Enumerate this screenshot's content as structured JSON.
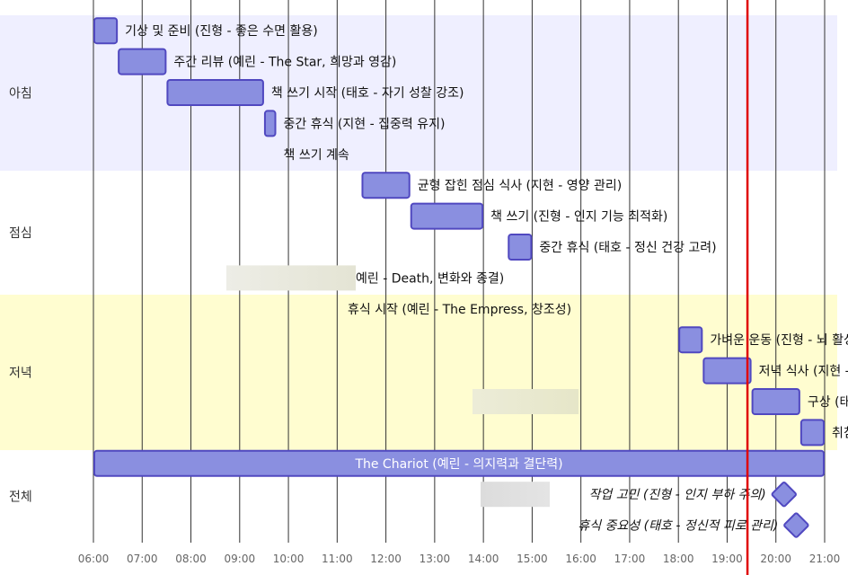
{
  "chart_data": {
    "type": "gantt",
    "x_range": [
      "06:00",
      "21:00"
    ],
    "x_ticks": [
      "06:00",
      "07:00",
      "08:00",
      "09:00",
      "10:00",
      "11:00",
      "12:00",
      "13:00",
      "14:00",
      "15:00",
      "16:00",
      "17:00",
      "18:00",
      "19:00",
      "20:00",
      "21:00"
    ],
    "today_marker": "19:25",
    "sections": [
      {
        "name": "아침",
        "color": "#efefff"
      },
      {
        "name": "점심",
        "color": "#ffffff"
      },
      {
        "name": "저녁",
        "color": "#fffdd0"
      },
      {
        "name": "전체",
        "color": "#ffffff"
      }
    ],
    "tasks": [
      {
        "label": "기상 및 준비 (진형 - 좋은 수면 활용)",
        "section": 0,
        "start": "06:00",
        "end": "06:30",
        "kind": "bar"
      },
      {
        "label": "주간 리뷰 (예린 - The Star, 희망과 영감)",
        "section": 0,
        "start": "06:30",
        "end": "07:30",
        "kind": "bar"
      },
      {
        "label": "책 쓰기 시작 (태호 - 자기 성찰 강조)",
        "section": 0,
        "start": "07:30",
        "end": "09:30",
        "kind": "bar"
      },
      {
        "label": "중간 휴식 (지현 - 집중력 유지)",
        "section": 0,
        "start": "09:30",
        "end": "09:45",
        "kind": "bar"
      },
      {
        "label": "책 쓰기 계속",
        "section": 0,
        "start": "09:45",
        "end": "09:45",
        "kind": "bar"
      },
      {
        "label": "균형 잡힌 점심 식사 (지현 - 영양 관리)",
        "section": 1,
        "start": "11:30",
        "end": "12:30",
        "kind": "bar"
      },
      {
        "label": "책 쓰기 (진형 - 인지 기능 최적화)",
        "section": 1,
        "start": "12:30",
        "end": "14:00",
        "kind": "bar"
      },
      {
        "label": "중간 휴식 (태호 - 정신 건강 고려)",
        "section": 1,
        "start": "14:30",
        "end": "15:00",
        "kind": "bar"
      },
      {
        "label": "예린 - Death, 변화와 종결)",
        "section": 1,
        "start": "08:45",
        "end": "11:25",
        "kind": "ghost"
      },
      {
        "label": "휴식 시작 (예린 - The Empress, 창조성)",
        "section": 2,
        "start": "",
        "end": "",
        "kind": "label"
      },
      {
        "label": "가벼운 운동 (진형 - 뇌 활성화)",
        "section": 2,
        "start": "18:00",
        "end": "18:30",
        "kind": "bar"
      },
      {
        "label": "저녁 식사 (지현 - 균형 잡힌 식단)",
        "section": 2,
        "start": "18:30",
        "end": "19:30",
        "kind": "bar"
      },
      {
        "label": "구상 (태호 - 창의성 발휘)",
        "section": 2,
        "start": "19:30",
        "end": "20:30",
        "kind": "bar"
      },
      {
        "label": "취침 준비 (지현 - 내일 준비)",
        "section": 2,
        "start": "20:30",
        "end": "21:00",
        "kind": "bar"
      },
      {
        "label": "The Chariot (예린 - 의지력과 결단력)",
        "section": 3,
        "start": "06:00",
        "end": "21:00",
        "kind": "bar-inside"
      },
      {
        "label": "작업 고민 (진형 - 인지 부하 주의)",
        "section": 3,
        "start": "20:10",
        "end": "20:10",
        "kind": "milestone"
      },
      {
        "label": "휴식 중요성 (태호 - 정신적 피로 관리)",
        "section": 3,
        "start": "20:25",
        "end": "20:25",
        "kind": "milestone"
      }
    ],
    "colors": {
      "bar_fill": "#8a8fe0",
      "bar_stroke": "#5048c0",
      "grid": "#333333",
      "today": "#e00000",
      "ghost": "#e8e8dc"
    }
  }
}
